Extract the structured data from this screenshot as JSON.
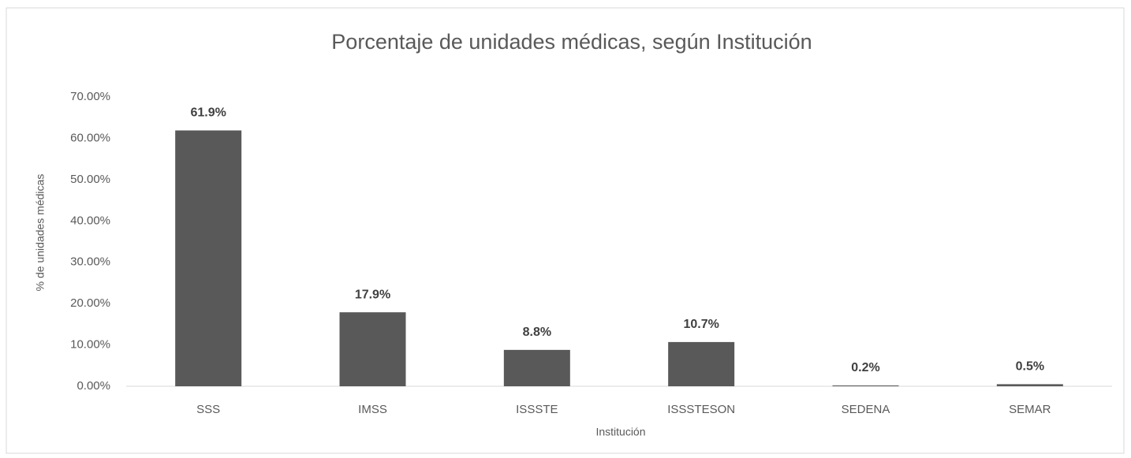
{
  "chart_data": {
    "type": "bar",
    "title": "Porcentaje de unidades médicas, según Institución",
    "x_label": "Institución",
    "y_label": "% de unidades médicas",
    "categories": [
      "SSS",
      "IMSS",
      "ISSSTE",
      "ISSSTESON",
      "SEDENA",
      "SEMAR"
    ],
    "values": [
      61.9,
      17.9,
      8.8,
      10.7,
      0.2,
      0.5
    ],
    "value_labels": [
      "61.9%",
      "17.9%",
      "8.8%",
      "10.7%",
      "0.2%",
      "0.5%"
    ],
    "color": "#595959",
    "ylim": [
      0,
      70
    ],
    "yticks": [
      {
        "value": 0,
        "label": "0.00%"
      },
      {
        "value": 10,
        "label": "10.00%"
      },
      {
        "value": 20,
        "label": "20.00%"
      },
      {
        "value": 30,
        "label": "30.00%"
      },
      {
        "value": 40,
        "label": "40.00%"
      },
      {
        "value": 50,
        "label": "50.00%"
      },
      {
        "value": 60,
        "label": "60.00%"
      },
      {
        "value": 70,
        "label": "70.00%"
      }
    ],
    "grid": false
  }
}
